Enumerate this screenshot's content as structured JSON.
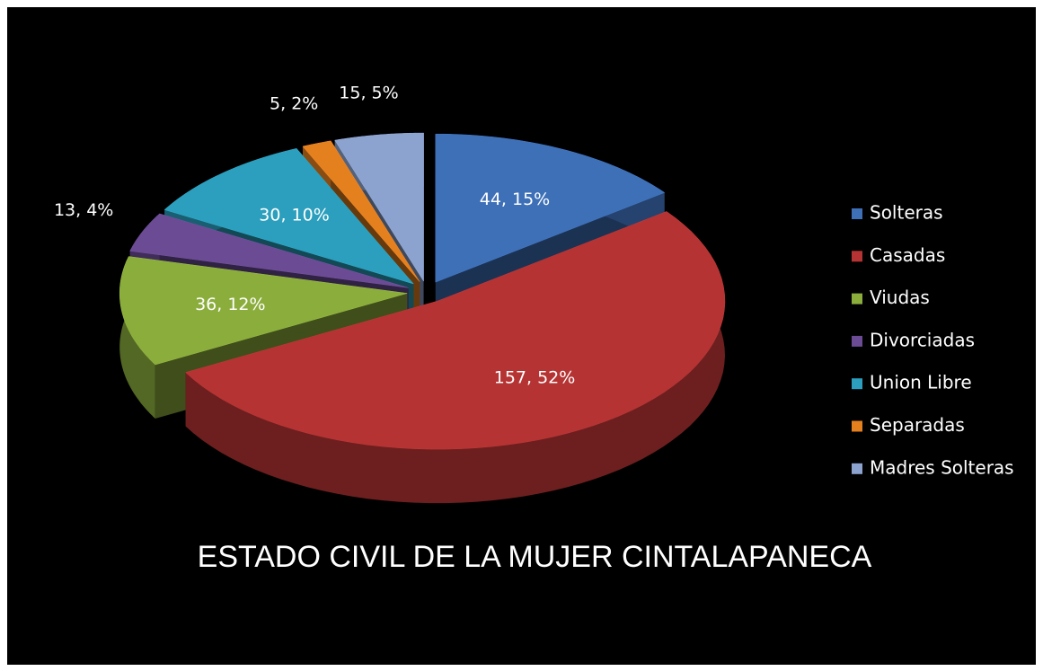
{
  "chart_data": {
    "type": "pie",
    "title": "ESTADO CIVIL DE LA MUJER CINTALAPANECA",
    "categories": [
      "Solteras",
      "Casadas",
      "Viudas",
      "Divorciadas",
      "Union Libre",
      "Separadas",
      "Madres Solteras"
    ],
    "values": [
      44,
      157,
      36,
      13,
      30,
      5,
      15
    ],
    "value_labels": [
      "44, 15%",
      "157, 52%",
      "36, 12%",
      "13, 4%",
      "30, 10%",
      "5, 2%",
      "15, 5%"
    ],
    "colors": [
      "#3e70b8",
      "#b53333",
      "#8bad3c",
      "#6b4b94",
      "#2b9fbd",
      "#e5801f",
      "#8ca3cf"
    ],
    "legend": "right"
  }
}
